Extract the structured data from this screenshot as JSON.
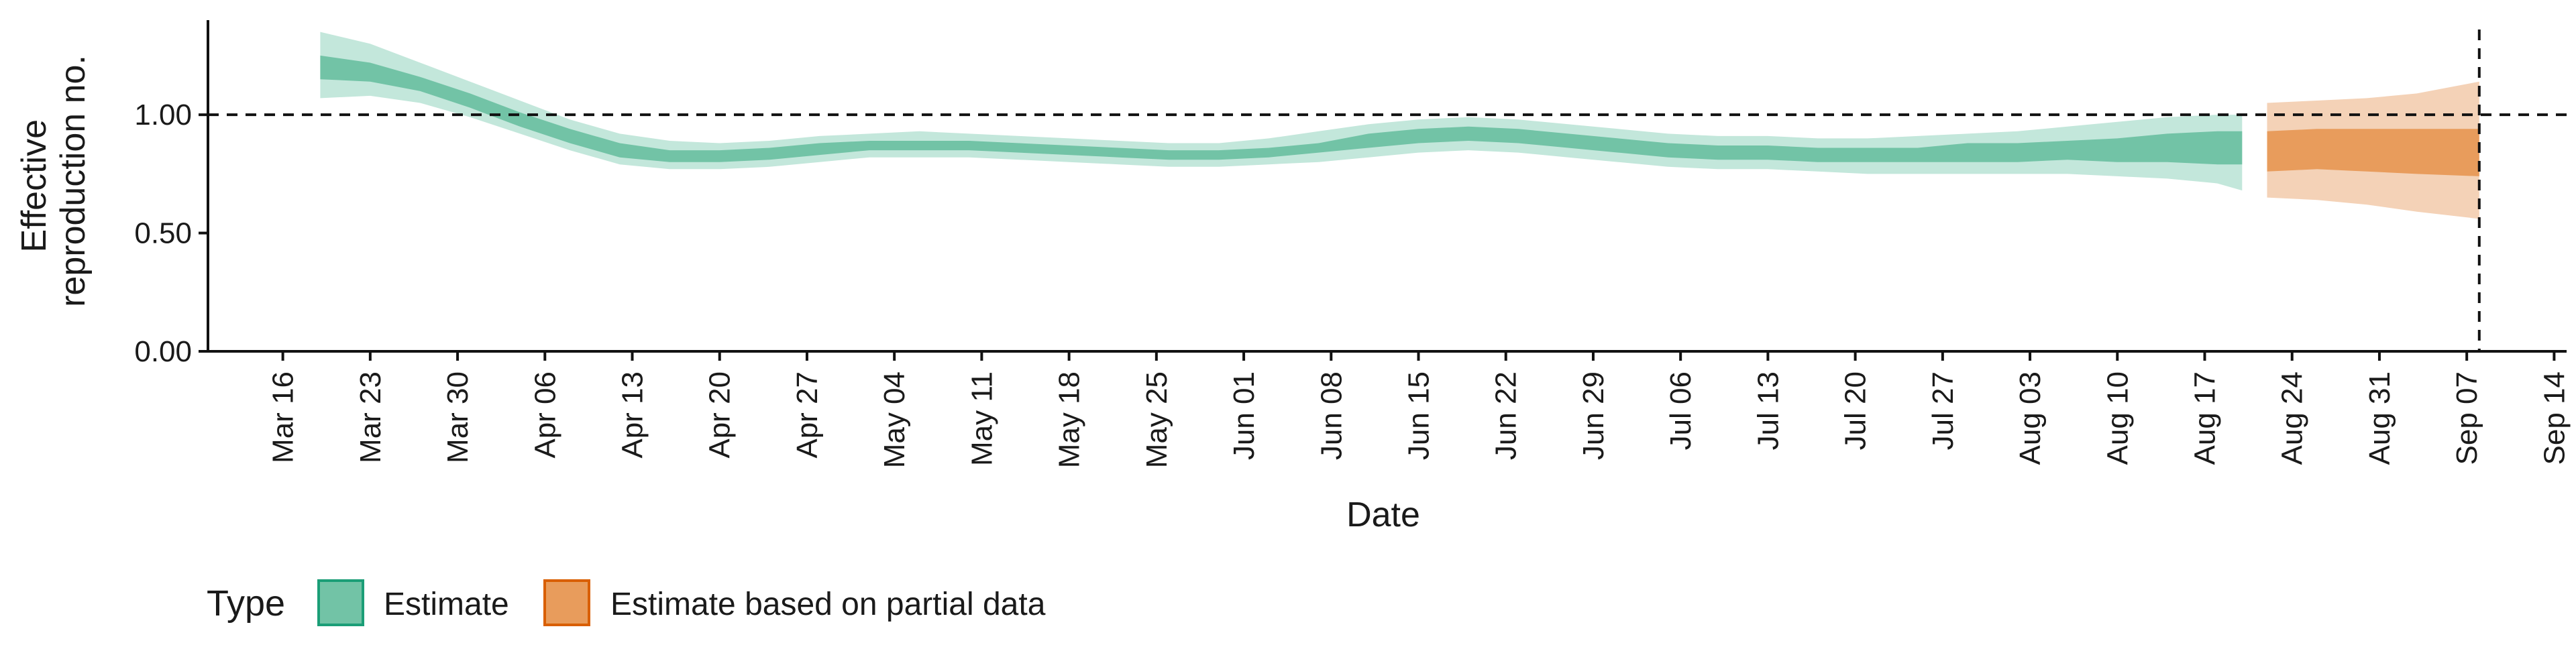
{
  "chart_data": {
    "type": "line",
    "xlabel": "Date",
    "ylabel": "Effective reproduction no.",
    "ylabel_lines": [
      "Effective",
      "reproduction no."
    ],
    "ylim": [
      0,
      1.4
    ],
    "xlim": [
      "2020-03-10",
      "2020-09-15"
    ],
    "y_ticks": [
      0.0,
      0.5,
      1.0
    ],
    "y_tick_labels": [
      "0.00",
      "0.50",
      "1.00"
    ],
    "x_ticks": [
      "2020-03-16",
      "2020-03-23",
      "2020-03-30",
      "2020-04-06",
      "2020-04-13",
      "2020-04-20",
      "2020-04-27",
      "2020-05-04",
      "2020-05-11",
      "2020-05-18",
      "2020-05-25",
      "2020-06-01",
      "2020-06-08",
      "2020-06-15",
      "2020-06-22",
      "2020-06-29",
      "2020-07-06",
      "2020-07-13",
      "2020-07-20",
      "2020-07-27",
      "2020-08-03",
      "2020-08-10",
      "2020-08-17",
      "2020-08-24",
      "2020-08-31",
      "2020-09-07",
      "2020-09-14"
    ],
    "x_tick_labels": [
      "Mar 16",
      "Mar 23",
      "Mar 30",
      "Apr 06",
      "Apr 13",
      "Apr 20",
      "Apr 27",
      "May 04",
      "May 11",
      "May 18",
      "May 25",
      "Jun 01",
      "Jun 08",
      "Jun 15",
      "Jun 22",
      "Jun 29",
      "Jul 06",
      "Jul 13",
      "Jul 20",
      "Jul 27",
      "Aug 03",
      "Aug 10",
      "Aug 17",
      "Aug 24",
      "Aug 31",
      "Sep 07",
      "Sep 14"
    ],
    "reference_lines": {
      "hline_y": 1.0,
      "vline_x": "2020-09-08"
    },
    "grid": false,
    "legend": {
      "title": "Type",
      "position": "bottom-left",
      "entries": [
        {
          "name": "Estimate",
          "color": "#1b9e77"
        },
        {
          "name": "Estimate based on partial data",
          "color": "#d95f02"
        }
      ]
    },
    "series": [
      {
        "name": "Estimate",
        "color": "#1b9e77",
        "x": [
          "2020-03-19",
          "2020-03-23",
          "2020-03-27",
          "2020-03-31",
          "2020-04-04",
          "2020-04-08",
          "2020-04-12",
          "2020-04-16",
          "2020-04-20",
          "2020-04-24",
          "2020-04-28",
          "2020-05-02",
          "2020-05-06",
          "2020-05-10",
          "2020-05-14",
          "2020-05-18",
          "2020-05-22",
          "2020-05-26",
          "2020-05-30",
          "2020-06-03",
          "2020-06-07",
          "2020-06-11",
          "2020-06-15",
          "2020-06-19",
          "2020-06-23",
          "2020-06-27",
          "2020-07-01",
          "2020-07-05",
          "2020-07-09",
          "2020-07-13",
          "2020-07-17",
          "2020-07-21",
          "2020-07-25",
          "2020-07-29",
          "2020-08-02",
          "2020-08-06",
          "2020-08-10",
          "2020-08-14",
          "2020-08-18",
          "2020-08-20"
        ],
        "median": [
          1.2,
          1.18,
          1.13,
          1.06,
          0.98,
          0.91,
          0.85,
          0.82,
          0.82,
          0.83,
          0.85,
          0.87,
          0.87,
          0.87,
          0.86,
          0.85,
          0.84,
          0.83,
          0.83,
          0.84,
          0.86,
          0.89,
          0.91,
          0.92,
          0.91,
          0.89,
          0.87,
          0.85,
          0.84,
          0.84,
          0.83,
          0.83,
          0.83,
          0.84,
          0.84,
          0.85,
          0.85,
          0.86,
          0.86,
          0.86
        ],
        "lower_50": [
          1.15,
          1.14,
          1.1,
          1.03,
          0.95,
          0.88,
          0.82,
          0.8,
          0.8,
          0.81,
          0.83,
          0.85,
          0.85,
          0.85,
          0.84,
          0.83,
          0.82,
          0.81,
          0.81,
          0.82,
          0.84,
          0.86,
          0.88,
          0.89,
          0.88,
          0.86,
          0.84,
          0.82,
          0.81,
          0.81,
          0.8,
          0.8,
          0.8,
          0.8,
          0.8,
          0.81,
          0.8,
          0.8,
          0.79,
          0.79
        ],
        "upper_50": [
          1.25,
          1.22,
          1.16,
          1.09,
          1.01,
          0.94,
          0.88,
          0.85,
          0.85,
          0.86,
          0.88,
          0.89,
          0.89,
          0.89,
          0.88,
          0.87,
          0.86,
          0.85,
          0.85,
          0.86,
          0.88,
          0.92,
          0.94,
          0.95,
          0.94,
          0.92,
          0.9,
          0.88,
          0.87,
          0.87,
          0.86,
          0.86,
          0.86,
          0.88,
          0.88,
          0.89,
          0.9,
          0.92,
          0.93,
          0.93
        ],
        "lower_90": [
          1.07,
          1.08,
          1.05,
          0.99,
          0.92,
          0.85,
          0.79,
          0.77,
          0.77,
          0.78,
          0.8,
          0.82,
          0.82,
          0.82,
          0.81,
          0.8,
          0.79,
          0.78,
          0.78,
          0.79,
          0.8,
          0.82,
          0.84,
          0.85,
          0.84,
          0.82,
          0.8,
          0.78,
          0.77,
          0.77,
          0.76,
          0.75,
          0.75,
          0.75,
          0.75,
          0.75,
          0.74,
          0.73,
          0.71,
          0.68
        ],
        "upper_90": [
          1.35,
          1.3,
          1.22,
          1.14,
          1.06,
          0.98,
          0.92,
          0.89,
          0.88,
          0.89,
          0.91,
          0.92,
          0.93,
          0.92,
          0.91,
          0.9,
          0.89,
          0.88,
          0.88,
          0.9,
          0.93,
          0.96,
          0.98,
          0.99,
          0.98,
          0.96,
          0.94,
          0.92,
          0.91,
          0.91,
          0.9,
          0.9,
          0.91,
          0.92,
          0.93,
          0.95,
          0.97,
          0.99,
          1.0,
          1.0
        ]
      },
      {
        "name": "Estimate based on partial data",
        "color": "#d95f02",
        "x": [
          "2020-08-22",
          "2020-08-26",
          "2020-08-30",
          "2020-09-03",
          "2020-09-08"
        ],
        "median": [
          0.84,
          0.85,
          0.85,
          0.84,
          0.84
        ],
        "lower_50": [
          0.76,
          0.77,
          0.76,
          0.75,
          0.74
        ],
        "upper_50": [
          0.93,
          0.94,
          0.94,
          0.94,
          0.94
        ],
        "lower_90": [
          0.65,
          0.64,
          0.62,
          0.59,
          0.56
        ],
        "upper_90": [
          1.05,
          1.06,
          1.07,
          1.09,
          1.14
        ]
      }
    ]
  }
}
